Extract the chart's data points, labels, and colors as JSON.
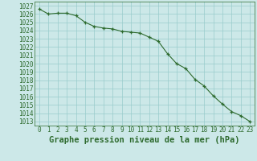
{
  "x": [
    0,
    1,
    2,
    3,
    4,
    5,
    6,
    7,
    8,
    9,
    10,
    11,
    12,
    13,
    14,
    15,
    16,
    17,
    18,
    19,
    20,
    21,
    22,
    23
  ],
  "y": [
    1026.6,
    1026.0,
    1026.1,
    1026.1,
    1025.8,
    1025.0,
    1024.5,
    1024.3,
    1024.2,
    1023.9,
    1023.8,
    1023.7,
    1023.2,
    1022.7,
    1021.2,
    1020.0,
    1019.4,
    1018.1,
    1017.3,
    1016.1,
    1015.1,
    1014.2,
    1013.7,
    1013.0
  ],
  "line_color": "#2d6a2d",
  "marker": "+",
  "bg_color": "#cce8e8",
  "grid_color": "#99cccc",
  "ylabel_ticks": [
    1013,
    1014,
    1015,
    1016,
    1017,
    1018,
    1019,
    1020,
    1021,
    1022,
    1023,
    1024,
    1025,
    1026,
    1027
  ],
  "ylim": [
    1012.5,
    1027.5
  ],
  "xlim": [
    -0.5,
    23.5
  ],
  "xlabel": "Graphe pression niveau de la mer (hPa)",
  "tick_fontsize": 5.5,
  "label_fontsize": 7.5
}
